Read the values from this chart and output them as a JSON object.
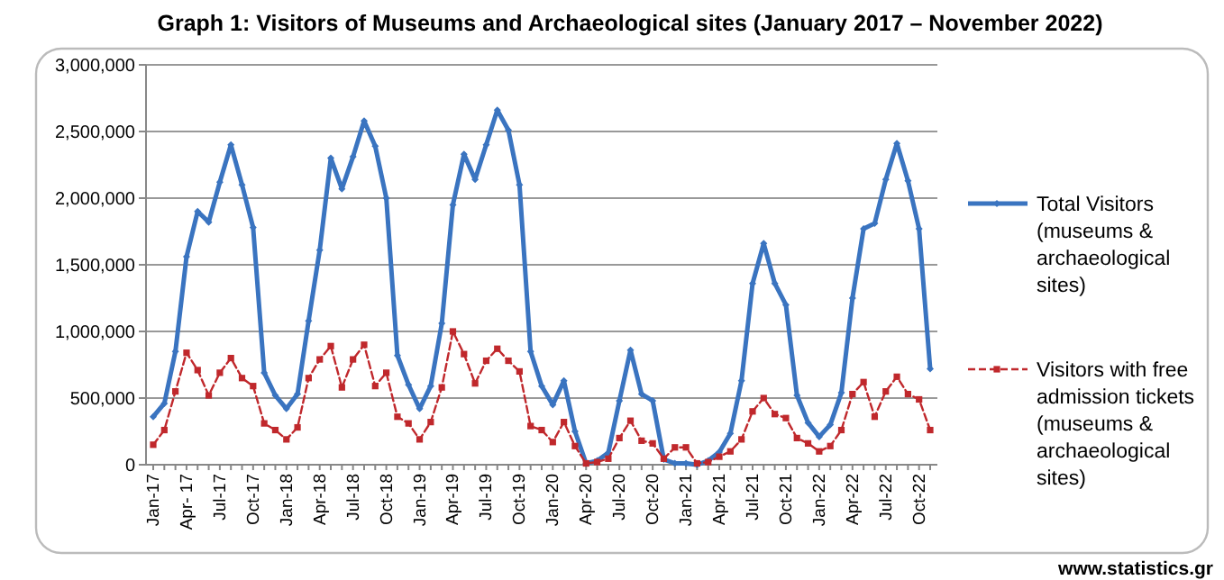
{
  "chart_data": {
    "type": "line",
    "title": "Graph 1: Visitors of Museums and Archaeological sites (January 2017 – November 2022)",
    "categories": [
      "Jan-17",
      null,
      null,
      "Apr- 17",
      null,
      null,
      "Jul-17",
      null,
      null,
      "Oct-17",
      null,
      null,
      "Jan-18",
      null,
      null,
      "Apr-18",
      null,
      null,
      "Jul-18",
      null,
      null,
      "Oct-18",
      null,
      null,
      "Jan-19",
      null,
      null,
      "Apr-19",
      null,
      null,
      "Jul-19",
      null,
      null,
      "Oct-19",
      null,
      null,
      "Jan-20",
      null,
      null,
      "Apr-20",
      null,
      null,
      "Jul-20",
      null,
      null,
      "Oct-20",
      null,
      null,
      "Jan-21",
      null,
      null,
      "Apr-21",
      null,
      null,
      "Jul-21",
      null,
      null,
      "Oct-21",
      null,
      null,
      "Jan-22",
      null,
      null,
      "Apr-22",
      null,
      null,
      "Jul-22",
      null,
      null,
      "Oct-22",
      null
    ],
    "series": [
      {
        "name": "Total Visitors (museums & archaeological sites)",
        "color": "#3a74c0",
        "line_style": "solid",
        "marker": "diamond",
        "values": [
          360000,
          460000,
          850000,
          1560000,
          1900000,
          1820000,
          2120000,
          2400000,
          2100000,
          1780000,
          690000,
          520000,
          420000,
          530000,
          1080000,
          1610000,
          2300000,
          2070000,
          2310000,
          2580000,
          2390000,
          2000000,
          820000,
          600000,
          420000,
          590000,
          1060000,
          1950000,
          2330000,
          2140000,
          2400000,
          2660000,
          2510000,
          2100000,
          850000,
          590000,
          450000,
          630000,
          250000,
          10000,
          30000,
          90000,
          480000,
          860000,
          530000,
          480000,
          40000,
          10000,
          10000,
          0,
          30000,
          95000,
          235000,
          630000,
          1360000,
          1660000,
          1360000,
          1200000,
          520000,
          315000,
          210000,
          300000,
          540000,
          1250000,
          1770000,
          1810000,
          2140000,
          2410000,
          2130000,
          1770000,
          720000
        ]
      },
      {
        "name": "Visitors with free admission tickets (museums & archaeological sites)",
        "color": "#c0282c",
        "line_style": "dashed",
        "marker": "square",
        "values": [
          150000,
          260000,
          550000,
          840000,
          710000,
          520000,
          690000,
          800000,
          650000,
          590000,
          310000,
          260000,
          190000,
          280000,
          650000,
          790000,
          890000,
          580000,
          790000,
          900000,
          590000,
          690000,
          360000,
          310000,
          190000,
          320000,
          580000,
          1000000,
          830000,
          610000,
          780000,
          870000,
          780000,
          700000,
          290000,
          260000,
          170000,
          320000,
          140000,
          10000,
          20000,
          45000,
          200000,
          330000,
          180000,
          160000,
          45000,
          130000,
          130000,
          10000,
          20000,
          60000,
          100000,
          190000,
          400000,
          500000,
          380000,
          350000,
          200000,
          160000,
          100000,
          140000,
          260000,
          530000,
          620000,
          360000,
          550000,
          660000,
          530000,
          490000,
          260000
        ]
      }
    ],
    "ylim": [
      0,
      3000000
    ],
    "yticks": [
      {
        "value": 0,
        "label": "0"
      },
      {
        "value": 500000,
        "label": "500,000"
      },
      {
        "value": 1000000,
        "label": "1,000,000"
      },
      {
        "value": 1500000,
        "label": "1,500,000"
      },
      {
        "value": 2000000,
        "label": "2,000,000"
      },
      {
        "value": 2500000,
        "label": "2,500,000"
      },
      {
        "value": 3000000,
        "label": "3,000,000"
      }
    ],
    "grid": "y",
    "legend": "right",
    "annotations": [
      "www.statistics.gr"
    ]
  }
}
